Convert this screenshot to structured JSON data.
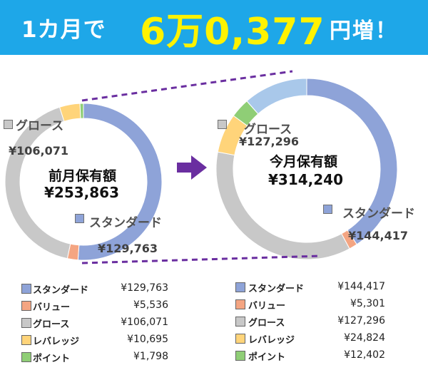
{
  "banner": {
    "prefix": "1カ月で",
    "amount": "6万0,377",
    "suffix": "円増！"
  },
  "colors": {
    "standard": "#8ea3d8",
    "value": "#f4a582",
    "growth": "#c8c8c8",
    "leverage": "#ffd47a",
    "point": "#8fce76",
    "gap": "#a9c8ea",
    "arrow": "#6a2ea0",
    "dash": "#6a2ea0",
    "banner": "#1ea7e8",
    "banner_amount": "#fff200"
  },
  "chart_data": [
    {
      "type": "pie",
      "title": "前月保有額",
      "total": "¥253,863",
      "slices": [
        {
          "name": "スタンダード",
          "value": 129763
        },
        {
          "name": "バリュー",
          "value": 5536
        },
        {
          "name": "グロース",
          "value": 106071
        },
        {
          "name": "レバレッジ",
          "value": 10695
        },
        {
          "name": "ポイント",
          "value": 1798
        }
      ],
      "callouts": {
        "growth_name": "グロース",
        "growth_value": "¥106,071",
        "standard_name": "スタンダード",
        "standard_value": "¥129,763"
      },
      "legend": [
        {
          "name": "スタンダード",
          "value": "¥129,763"
        },
        {
          "name": "バリュー",
          "value": "¥5,536"
        },
        {
          "name": "グロース",
          "value": "¥106,071"
        },
        {
          "name": "レバレッジ",
          "value": "¥10,695"
        },
        {
          "name": "ポイント",
          "value": "¥1,798"
        }
      ]
    },
    {
      "type": "pie",
      "title": "今月保有額",
      "total": "¥314,240",
      "slices": [
        {
          "name": "スタンダード",
          "value": 144417
        },
        {
          "name": "バリュー",
          "value": 5301
        },
        {
          "name": "グロース",
          "value": 127296
        },
        {
          "name": "レバレッジ",
          "value": 24824
        },
        {
          "name": "ポイント",
          "value": 12402
        }
      ],
      "callouts": {
        "growth_name": "グロース",
        "growth_value": "¥127,296",
        "standard_name": "スタンダード",
        "standard_value": "¥144,417"
      },
      "legend": [
        {
          "name": "スタンダード",
          "value": "¥144,417"
        },
        {
          "name": "バリュー",
          "value": "¥5,301"
        },
        {
          "name": "グロース",
          "value": "¥127,296"
        },
        {
          "name": "レバレッジ",
          "value": "¥24,824"
        },
        {
          "name": "ポイント",
          "value": "¥12,402"
        }
      ]
    }
  ]
}
